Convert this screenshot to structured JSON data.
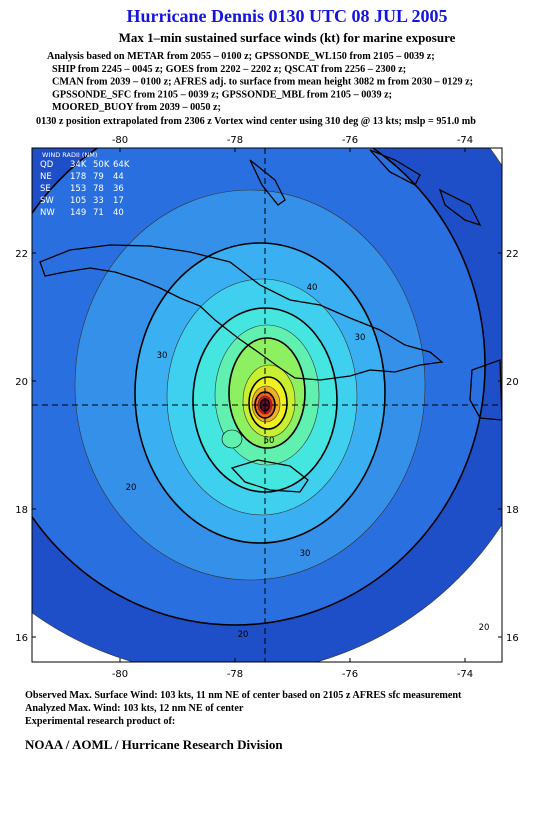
{
  "header": {
    "title": "Hurricane Dennis 0130 UTC 08 JUL 2005",
    "subtitle": "Max 1–min sustained surface winds (kt) for marine exposure",
    "analysis_lines": [
      "Analysis based on  METAR from 2055 – 0100 z;  GPSSONDE_WL150 from 2105 – 0039 z;",
      "SHIP from 2245 – 0045 z;  GOES from 2202 – 2202 z;  QSCAT from 2256 – 2300 z;",
      "CMAN from 2039 – 0100 z;  AFRES adj. to surface from mean height 3082 m from 2030 – 0129 z;",
      "GPSSONDE_SFC from 2105 – 0039 z;  GPSSONDE_MBL from 2105 – 0039 z;",
      "MOORED_BUOY from 2039 – 0050 z;"
    ],
    "position_note": "0130 z position extrapolated from 2306 z Vortex wind center using 310 deg @ 13 kts; mslp = 951.0 mb"
  },
  "map": {
    "lon_ticks": [
      -80,
      -78,
      -76,
      -74
    ],
    "lat_ticks": [
      16,
      18,
      20,
      22
    ],
    "wind_radii": {
      "title": "WIND RADII (NM)",
      "rows": [
        [
          "QD",
          "34K",
          "50K",
          "64K"
        ],
        [
          "NE",
          "178",
          "79",
          "44"
        ],
        [
          "SE",
          "153",
          "78",
          "36"
        ],
        [
          "SW",
          "105",
          "33",
          "17"
        ],
        [
          "NW",
          "149",
          "71",
          "40"
        ]
      ]
    },
    "contour_labels": [
      "40",
      "30",
      "30",
      "30",
      "20",
      "20",
      "20",
      "50"
    ]
  },
  "footer": {
    "lines": [
      "Observed Max. Surface Wind: 103 kts, 11 nm NE of center based on 2105 z AFRES sfc measurement",
      "Analyzed Max. Wind: 103 kts, 12 nm NE of center",
      "Experimental research product of:"
    ],
    "organization": "NOAA / AOML / Hurricane Research Division"
  }
}
